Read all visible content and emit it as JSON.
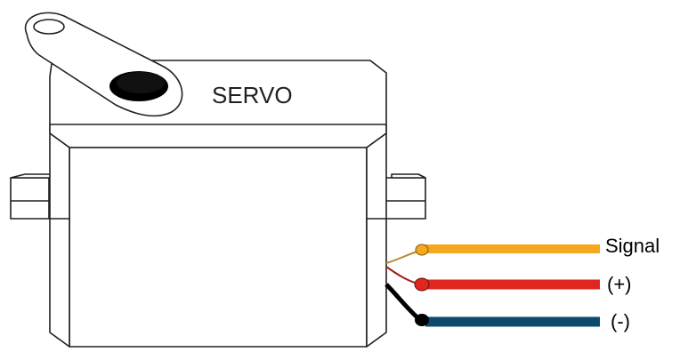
{
  "servo": {
    "label": "SERVO"
  },
  "wires": [
    {
      "label": "Signal",
      "color": "#F5A81C",
      "name": "signal"
    },
    {
      "label": "(+)",
      "color": "#E0261F",
      "name": "positive"
    },
    {
      "label": "(-)",
      "color": "#0B4A6E",
      "name": "ground"
    }
  ],
  "colors": {
    "outline": "#231F20",
    "shaft": "#000000"
  }
}
